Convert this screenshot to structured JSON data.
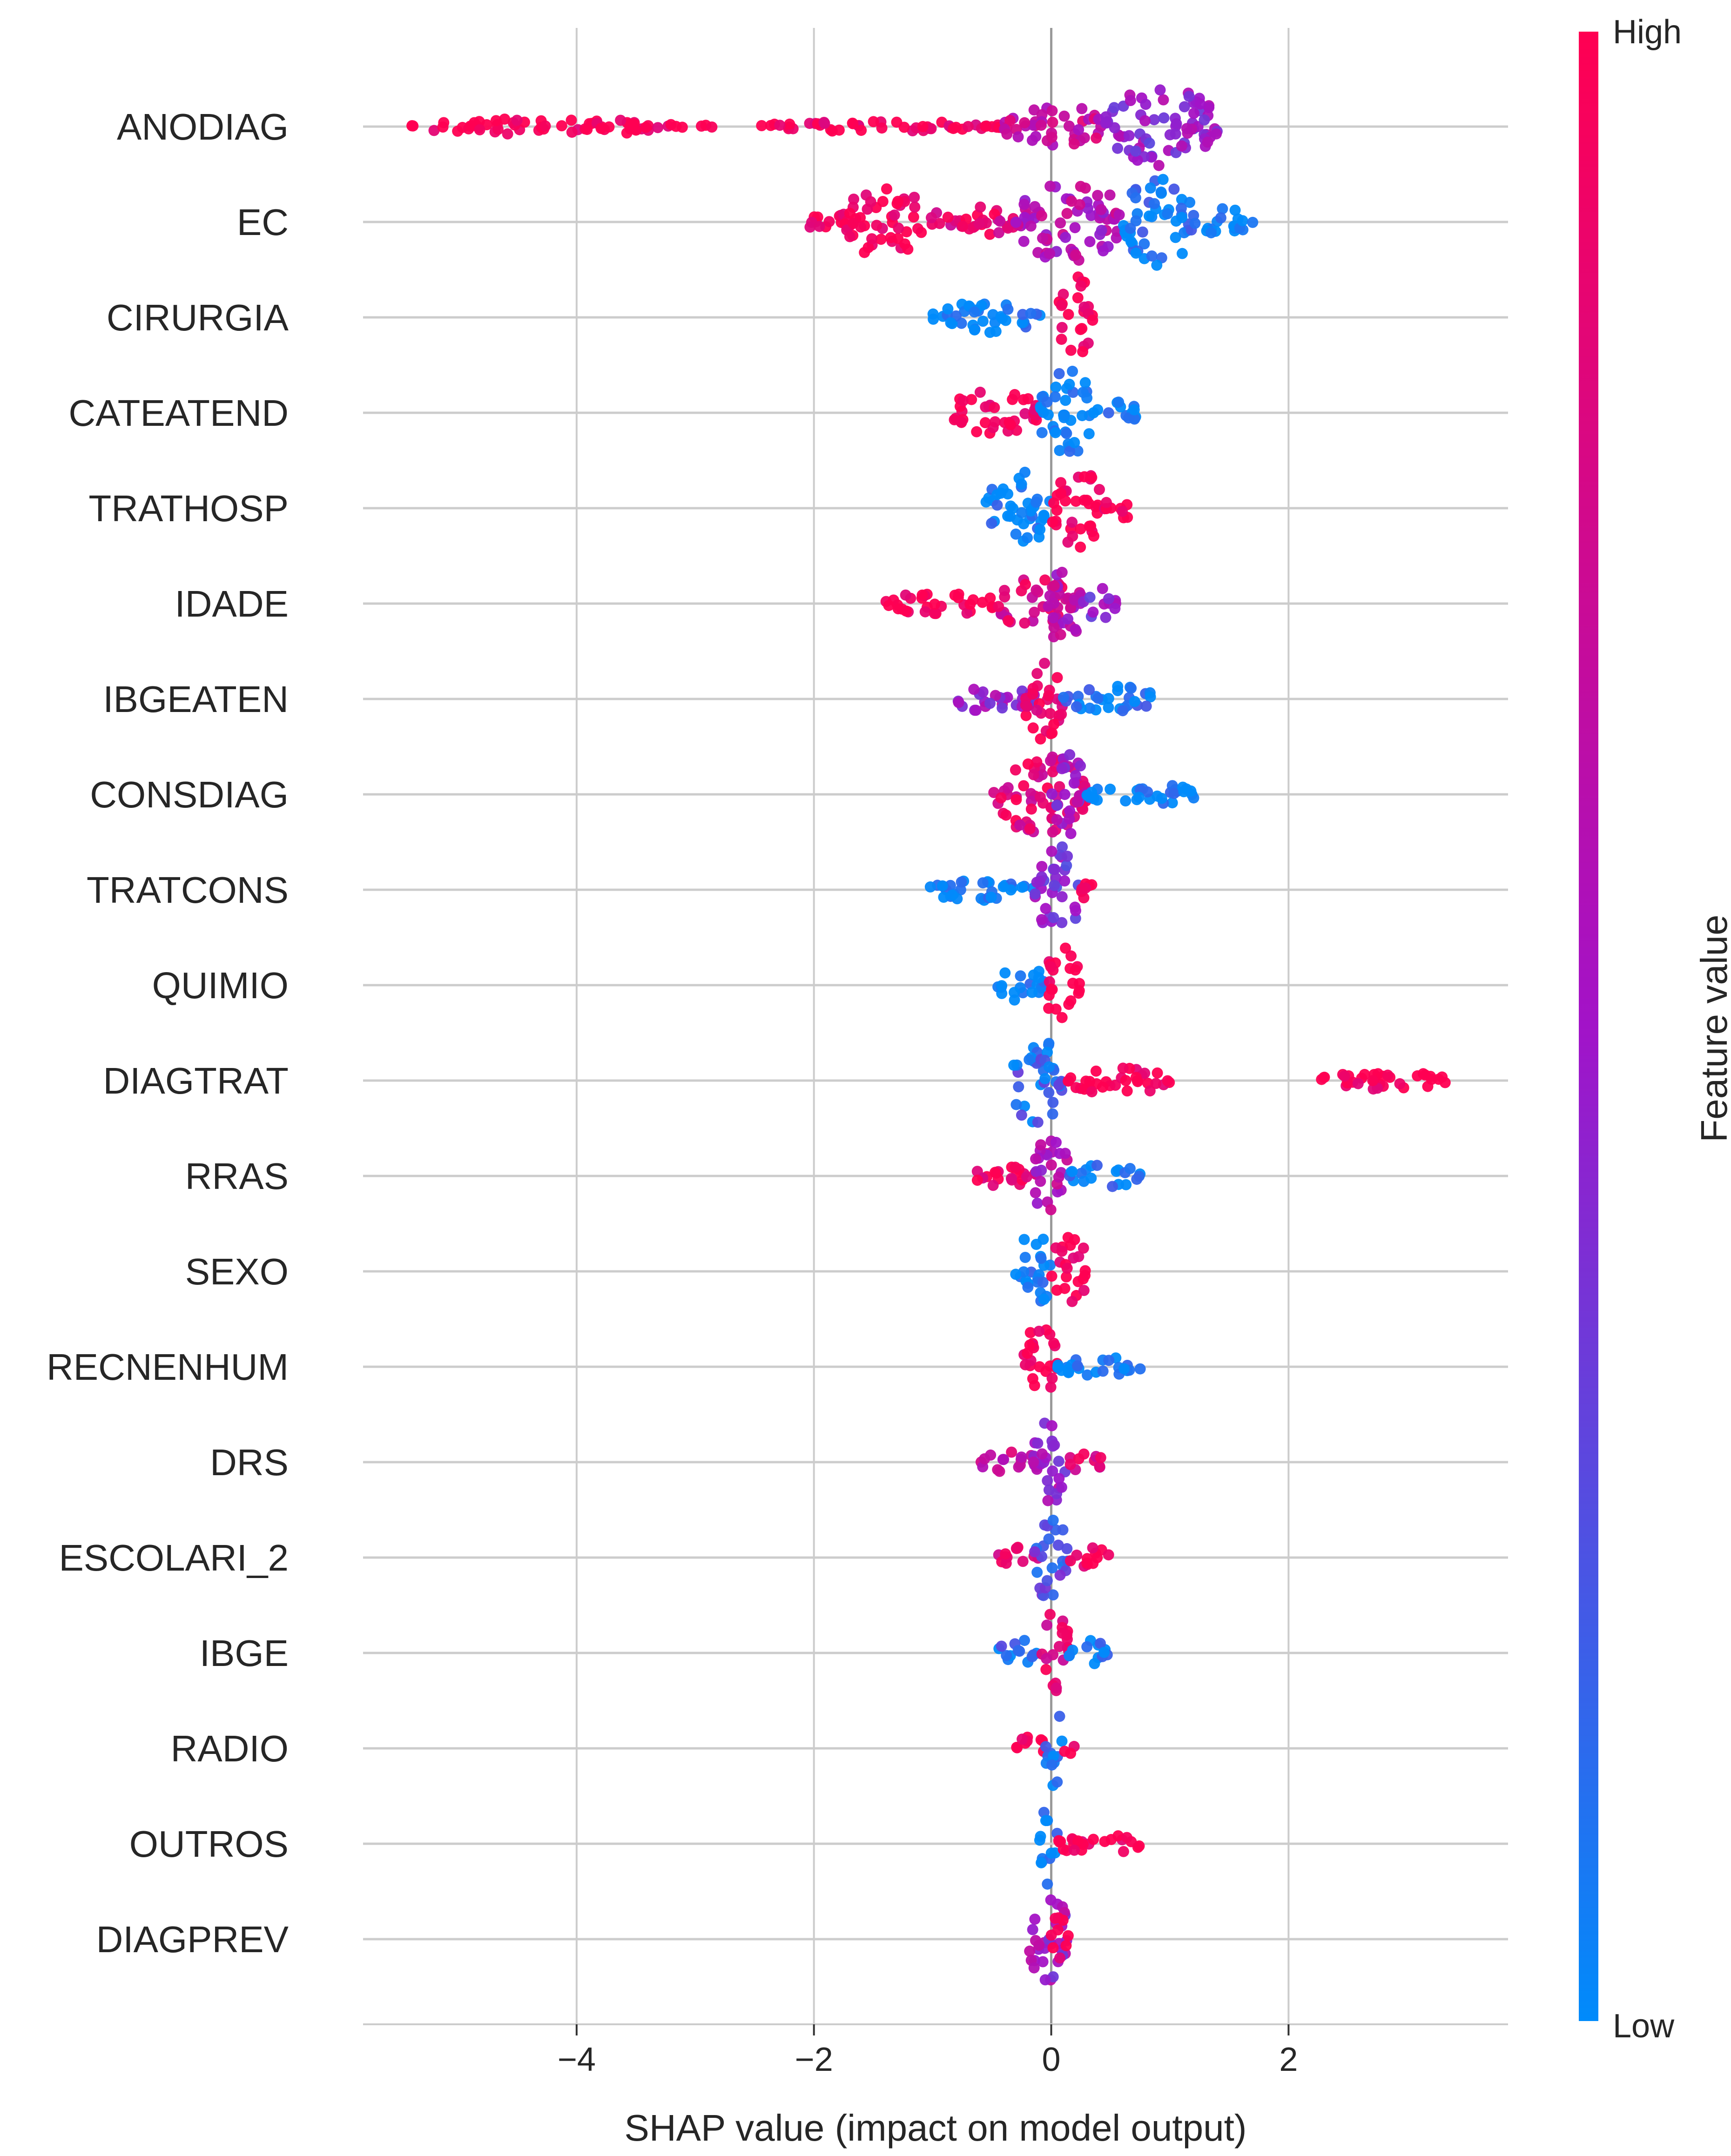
{
  "chart_data": {
    "type": "scatter",
    "subtype": "shap-beeswarm-summary",
    "xlabel": "SHAP value (impact on model output)",
    "xlim": [
      -5.8,
      3.85
    ],
    "x_ticks": [
      -4,
      -2,
      0,
      2
    ],
    "x_tick_labels": [
      "−4",
      "−2",
      "0",
      "2"
    ],
    "grid": "vertical",
    "colorbar": {
      "title": "Feature value",
      "high_label": "High",
      "low_label": "Low",
      "high_color": "#ff0052",
      "mid_color": "#a213c8",
      "low_color": "#008bfb"
    },
    "features": [
      {
        "name": "ANODIAG",
        "segments": [
          {
            "x0": -5.4,
            "x1": -3.1,
            "value": 1.0,
            "height": 0.18
          },
          {
            "x0": -3.0,
            "x1": -2.85,
            "value": 1.0,
            "height": 0.08
          },
          {
            "x0": -2.45,
            "x1": -0.4,
            "value": 0.95,
            "height": 0.12
          },
          {
            "x0": -0.4,
            "x1": 0.45,
            "value": 0.7,
            "height": 0.5
          },
          {
            "x0": 0.45,
            "x1": 1.4,
            "value": 0.45,
            "height": 0.9
          }
        ]
      },
      {
        "name": "EC",
        "segments": [
          {
            "x0": -2.05,
            "x1": -1.75,
            "value": 1.0,
            "height": 0.3
          },
          {
            "x0": -1.75,
            "x1": -1.05,
            "value": 1.0,
            "height": 0.8
          },
          {
            "x0": -1.05,
            "x1": -0.3,
            "value": 0.85,
            "height": 0.35
          },
          {
            "x0": -0.3,
            "x1": 0.6,
            "value": 0.6,
            "height": 0.95
          },
          {
            "x0": 0.6,
            "x1": 1.2,
            "value": 0.05,
            "height": 1.0
          },
          {
            "x0": 1.2,
            "x1": 1.7,
            "value": 0.0,
            "height": 0.3
          }
        ]
      },
      {
        "name": "CIRURGIA",
        "segments": [
          {
            "x0": -1.0,
            "x1": -0.05,
            "value": 0.0,
            "height": 0.35
          },
          {
            "x0": 0.05,
            "x1": 0.35,
            "value": 1.0,
            "height": 0.95
          }
        ]
      },
      {
        "name": "CATEATEND",
        "segments": [
          {
            "x0": -0.85,
            "x1": -0.1,
            "value": 1.0,
            "height": 0.5
          },
          {
            "x0": -0.1,
            "x1": 0.35,
            "value": 0.0,
            "height": 1.0
          },
          {
            "x0": 0.35,
            "x1": 0.75,
            "value": 0.0,
            "height": 0.25
          }
        ]
      },
      {
        "name": "TRATHOSP",
        "segments": [
          {
            "x0": -0.55,
            "x1": 0.0,
            "value": 0.0,
            "height": 0.85
          },
          {
            "x0": 0.0,
            "x1": 0.45,
            "value": 1.0,
            "height": 0.9
          },
          {
            "x0": 0.45,
            "x1": 0.7,
            "value": 1.0,
            "height": 0.25
          }
        ]
      },
      {
        "name": "IDADE",
        "segments": [
          {
            "x0": -1.4,
            "x1": -0.45,
            "value": 1.0,
            "height": 0.25
          },
          {
            "x0": -0.45,
            "x1": 0.2,
            "value": 0.8,
            "height": 0.6
          },
          {
            "x0": -0.05,
            "x1": 0.25,
            "value": 0.6,
            "height": 0.95
          },
          {
            "x0": 0.25,
            "x1": 0.55,
            "value": 0.4,
            "height": 0.35
          }
        ]
      },
      {
        "name": "IBGEATEN",
        "segments": [
          {
            "x0": -0.85,
            "x1": -0.1,
            "value": 0.5,
            "height": 0.3
          },
          {
            "x0": -0.25,
            "x1": 0.1,
            "value": 0.95,
            "height": 0.95
          },
          {
            "x0": 0.1,
            "x1": 0.9,
            "value": 0.05,
            "height": 0.3
          }
        ]
      },
      {
        "name": "CONSDIAG",
        "segments": [
          {
            "x0": -0.5,
            "x1": 0.3,
            "value": 0.85,
            "height": 0.9
          },
          {
            "x0": 0.0,
            "x1": 0.3,
            "value": 0.5,
            "height": 1.0
          },
          {
            "x0": 0.3,
            "x1": 1.25,
            "value": 0.0,
            "height": 0.25
          }
        ]
      },
      {
        "name": "TRATCONS",
        "segments": [
          {
            "x0": -1.05,
            "x1": -0.15,
            "value": 0.0,
            "height": 0.25
          },
          {
            "x0": -0.15,
            "x1": 0.25,
            "value": 0.4,
            "height": 1.0
          },
          {
            "x0": 0.25,
            "x1": 0.45,
            "value": 0.95,
            "height": 0.3
          }
        ]
      },
      {
        "name": "QUIMIO",
        "segments": [
          {
            "x0": -0.45,
            "x1": -0.05,
            "value": 0.0,
            "height": 0.5
          },
          {
            "x0": -0.05,
            "x1": 0.25,
            "value": 1.0,
            "height": 0.9
          }
        ]
      },
      {
        "name": "DIAGTRAT",
        "segments": [
          {
            "x0": -0.35,
            "x1": 0.1,
            "value": 0.15,
            "height": 0.95
          },
          {
            "x0": 0.1,
            "x1": 1.0,
            "value": 1.0,
            "height": 0.3
          },
          {
            "x0": 2.25,
            "x1": 3.35,
            "value": 1.0,
            "height": 0.2
          }
        ]
      },
      {
        "name": "RRAS",
        "segments": [
          {
            "x0": -0.65,
            "x1": -0.1,
            "value": 0.95,
            "height": 0.3
          },
          {
            "x0": -0.15,
            "x1": 0.15,
            "value": 0.6,
            "height": 1.0
          },
          {
            "x0": 0.15,
            "x1": 0.75,
            "value": 0.05,
            "height": 0.25
          }
        ]
      },
      {
        "name": "SEXO",
        "segments": [
          {
            "x0": -0.3,
            "x1": 0.0,
            "value": 0.0,
            "height": 0.9
          },
          {
            "x0": 0.0,
            "x1": 0.3,
            "value": 1.0,
            "height": 0.9
          }
        ]
      },
      {
        "name": "RECNENHUM",
        "segments": [
          {
            "x0": -0.25,
            "x1": 0.05,
            "value": 1.0,
            "height": 0.95
          },
          {
            "x0": 0.05,
            "x1": 0.75,
            "value": 0.0,
            "height": 0.25
          }
        ]
      },
      {
        "name": "DRS",
        "segments": [
          {
            "x0": -0.6,
            "x1": -0.1,
            "value": 0.7,
            "height": 0.25
          },
          {
            "x0": -0.15,
            "x1": 0.15,
            "value": 0.5,
            "height": 1.0
          },
          {
            "x0": 0.15,
            "x1": 0.45,
            "value": 0.8,
            "height": 0.25
          }
        ]
      },
      {
        "name": "ESCOLARI_2",
        "segments": [
          {
            "x0": -0.45,
            "x1": -0.1,
            "value": 0.9,
            "height": 0.25
          },
          {
            "x0": -0.15,
            "x1": 0.15,
            "value": 0.25,
            "height": 1.0
          },
          {
            "x0": 0.15,
            "x1": 0.5,
            "value": 0.9,
            "height": 0.25
          }
        ]
      },
      {
        "name": "IBGE",
        "segments": [
          {
            "x0": -0.45,
            "x1": -0.1,
            "value": 0.1,
            "height": 0.3
          },
          {
            "x0": -0.1,
            "x1": 0.15,
            "value": 0.85,
            "height": 1.0
          },
          {
            "x0": 0.15,
            "x1": 0.5,
            "value": 0.05,
            "height": 0.3
          }
        ]
      },
      {
        "name": "RADIO",
        "segments": [
          {
            "x0": -0.3,
            "x1": -0.05,
            "value": 1.0,
            "height": 0.3
          },
          {
            "x0": -0.05,
            "x1": 0.1,
            "value": 0.05,
            "height": 1.0
          },
          {
            "x0": 0.1,
            "x1": 0.2,
            "value": 1.0,
            "height": 0.2
          }
        ]
      },
      {
        "name": "OUTROS",
        "segments": [
          {
            "x0": -0.1,
            "x1": 0.05,
            "value": 0.0,
            "height": 1.0
          },
          {
            "x0": 0.05,
            "x1": 0.75,
            "value": 1.0,
            "height": 0.25
          }
        ]
      },
      {
        "name": "DIAGPREV",
        "segments": [
          {
            "x0": -0.2,
            "x1": 0.15,
            "value": 0.5,
            "height": 1.0
          },
          {
            "x0": 0.0,
            "x1": 0.15,
            "value": 1.0,
            "height": 0.6
          }
        ]
      }
    ]
  }
}
